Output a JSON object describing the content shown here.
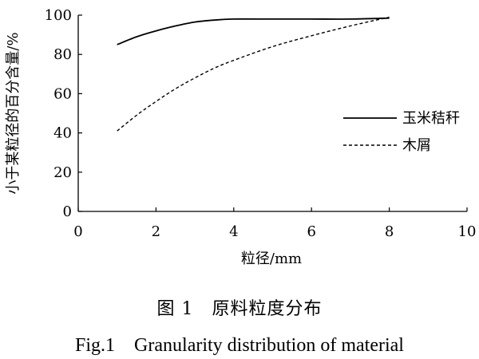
{
  "chart_data": {
    "type": "line",
    "xlabel": "粒径/mm",
    "ylabel": "小于某粒径的百分含量/%",
    "xlim": [
      0,
      10
    ],
    "ylim": [
      0,
      100
    ],
    "xticks": [
      "0",
      "2",
      "4",
      "6",
      "8",
      "10"
    ],
    "yticks": [
      "0",
      "20",
      "40",
      "60",
      "80",
      "100"
    ],
    "grid": false,
    "legend_position": "right",
    "series": [
      {
        "name": "玉米秸秆",
        "style": "solid",
        "x": [
          1,
          1.5,
          2,
          2.5,
          3,
          3.5,
          4,
          5,
          6,
          7,
          8
        ],
        "y": [
          85,
          89,
          92,
          94.5,
          96.5,
          97.5,
          98,
          98,
          98,
          98,
          98.5
        ]
      },
      {
        "name": "木屑",
        "style": "dashed",
        "x": [
          1,
          1.5,
          2,
          2.5,
          3,
          3.5,
          4,
          5,
          6,
          7,
          8
        ],
        "y": [
          41,
          49,
          56,
          62.5,
          68,
          73,
          77,
          84,
          89.5,
          94.5,
          99
        ]
      }
    ]
  },
  "caption": {
    "cn": "图 1　原料粒度分布",
    "en": "Fig.1　Granularity distribution of material"
  }
}
